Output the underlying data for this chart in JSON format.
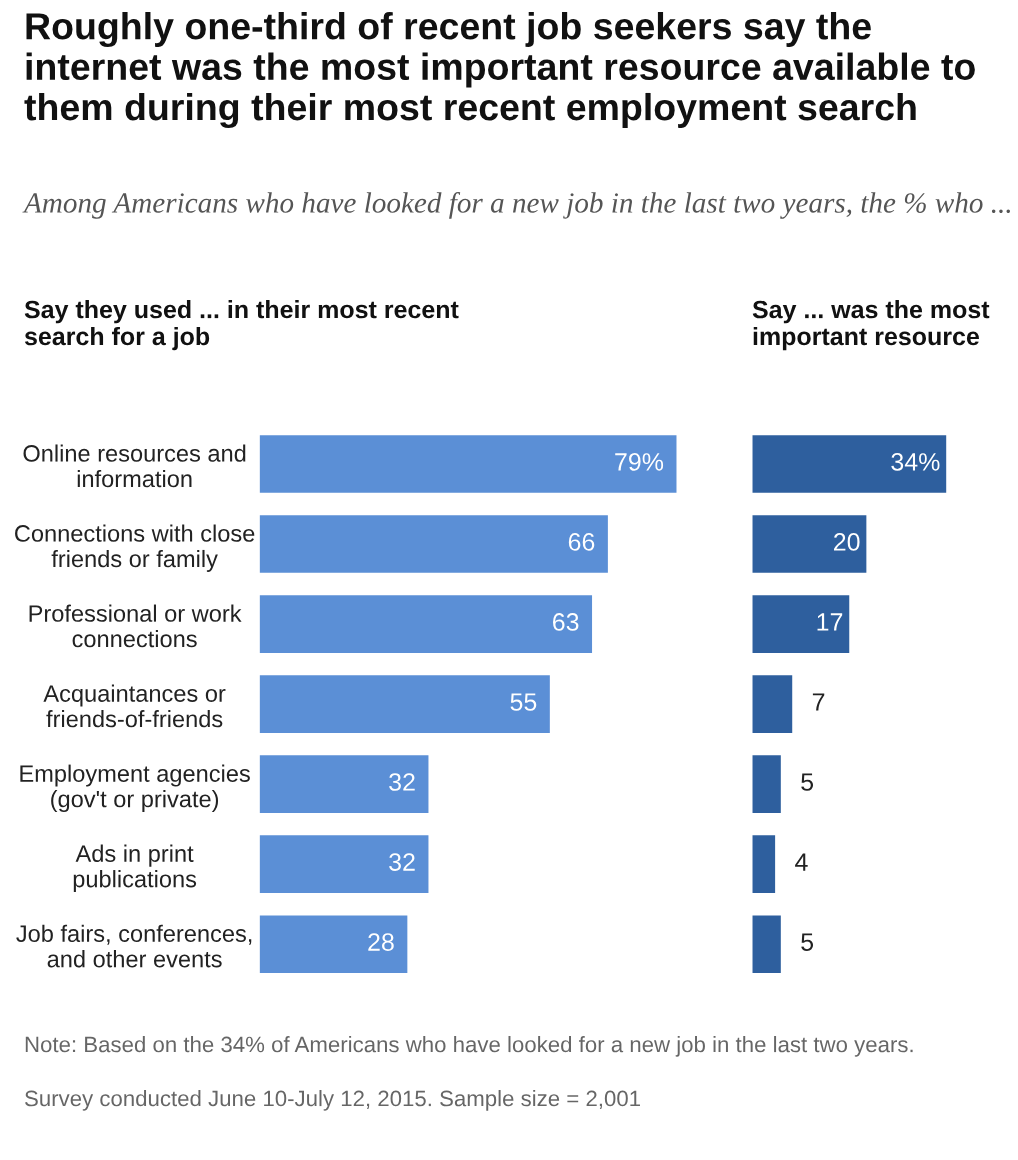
{
  "chart_data": [
    {
      "type": "bar",
      "orientation": "horizontal",
      "title": "Roughly one-third of recent job seekers say the internet was the most important resource available to them during their most recent employment search",
      "subtitle": "Among Americans who have looked for a new job in the last two years, the % who ...",
      "categories": [
        "Online resources and\ninformation",
        "Connections with close\nfriends or family",
        "Professional or work\nconnections",
        "Acquaintances or\nfriends-of-friends",
        "Employment agencies\n(gov't or private)",
        "Ads in print\npublications",
        "Job fairs, conferences,\nand other events"
      ],
      "values": [
        79,
        66,
        63,
        55,
        32,
        32,
        28
      ],
      "color": "#5b8fd6",
      "value_labels": [
        "79%",
        "66",
        "63",
        "55",
        "32",
        "32",
        "28"
      ],
      "tick_labels": "y",
      "annotations": [
        "Say they used ... in their most recent\nsearch for a job",
        "Note: Based on the 34% of Americans who have looked for a new job in the last two years.",
        "Survey conducted June 10-July 12, 2015. Sample size = 2,001"
      ]
    },
    {
      "type": "bar",
      "orientation": "horizontal",
      "title": "Say ... was the most\nimportant resource",
      "categories": [
        null,
        null,
        null,
        null,
        null,
        null,
        null
      ],
      "values": [
        34,
        20,
        17,
        7,
        5,
        4,
        5
      ],
      "color": "#2e5f9e",
      "value_labels": [
        "34%",
        "20",
        "17",
        "7",
        "5",
        "4",
        "5"
      ],
      "tick_labels": false
    }
  ]
}
